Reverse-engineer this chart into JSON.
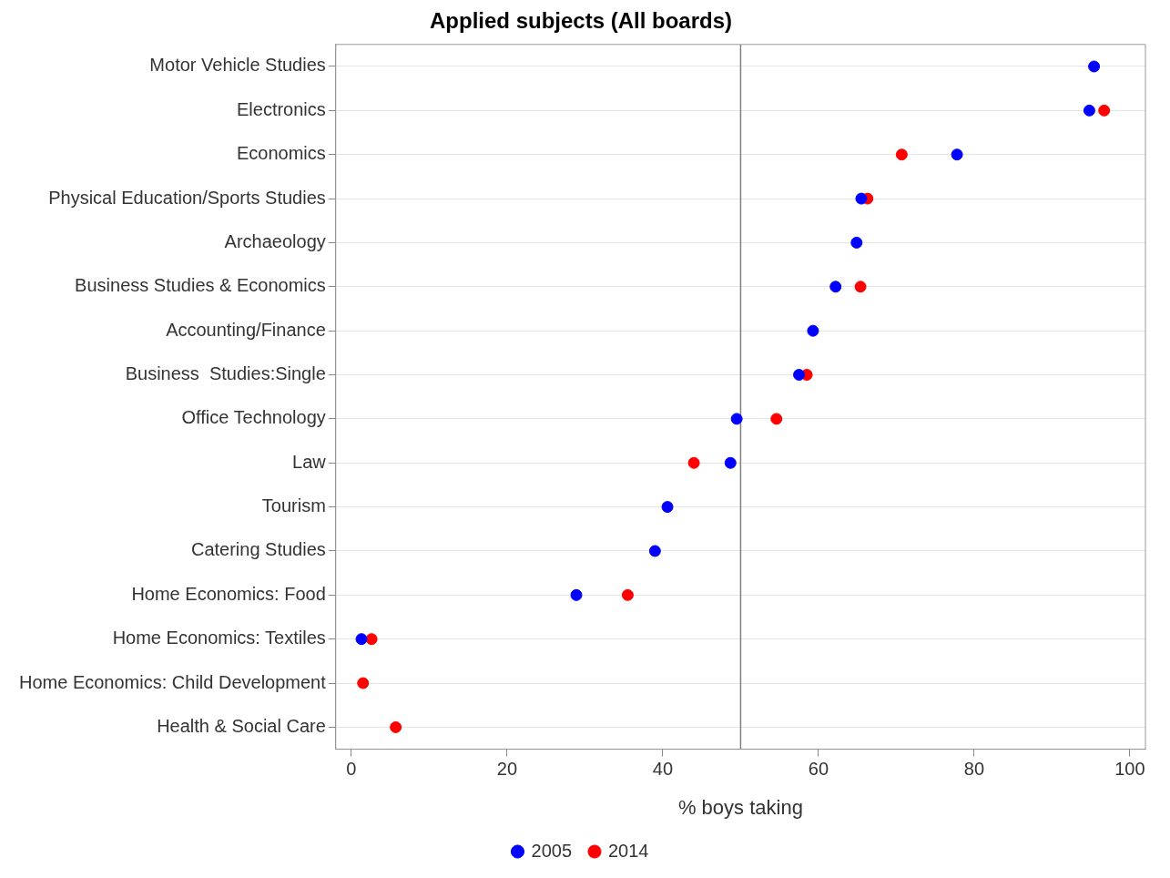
{
  "chart_data": {
    "type": "scatter",
    "title": "Applied subjects (All boards)",
    "xlabel": "% boys taking",
    "orientation": "horizontal",
    "categories": [
      "Motor Vehicle Studies",
      "Electronics",
      "Economics",
      "Physical Education/Sports Studies",
      "Archaeology",
      "Business Studies & Economics",
      "Accounting/Finance",
      "Business  Studies:Single",
      "Office Technology",
      "Law",
      "Tourism",
      "Catering Studies",
      "Home Economics: Food",
      "Home Economics: Textiles",
      "Home Economics: Child Development",
      "Health & Social Care"
    ],
    "series": [
      {
        "name": "2005",
        "color": "#0000ff",
        "values": [
          95.4,
          94.8,
          77.8,
          65.5,
          64.9,
          62.2,
          59.3,
          57.5,
          49.5,
          48.7,
          40.6,
          39.0,
          28.9,
          1.3,
          null,
          null
        ]
      },
      {
        "name": "2014",
        "color": "#ff0000",
        "values": [
          null,
          96.7,
          70.7,
          66.3,
          null,
          65.4,
          null,
          58.5,
          54.6,
          44.0,
          null,
          null,
          35.5,
          2.6,
          1.5,
          5.7
        ]
      }
    ],
    "xlim": [
      -2,
      102
    ],
    "xticks": [
      0,
      20,
      40,
      60,
      80,
      100
    ],
    "ref_lines": [
      {
        "axis": "x",
        "value": 50,
        "color": "#808080"
      }
    ],
    "grid": "y",
    "legend": "bottom",
    "marker": "circle"
  }
}
